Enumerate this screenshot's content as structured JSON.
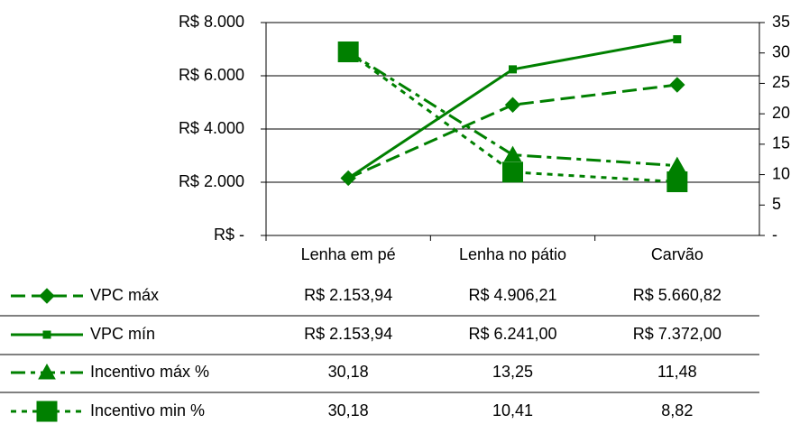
{
  "chart_data": {
    "type": "line",
    "categories": [
      "Lenha em pé",
      "Lenha no pátio",
      "Carvão"
    ],
    "ylim": [
      0,
      8000
    ],
    "yticks": [
      {
        "value": 0,
        "label": "R$ -"
      },
      {
        "value": 2000,
        "label": "R$ 2.000"
      },
      {
        "value": 4000,
        "label": "R$ 4.000"
      },
      {
        "value": 6000,
        "label": "R$ 6.000"
      },
      {
        "value": 8000,
        "label": "R$ 8.000"
      }
    ],
    "y2lim": [
      0,
      35
    ],
    "y2ticks": [
      {
        "value": 0,
        "label": "-"
      },
      5,
      10,
      15,
      20,
      25,
      30,
      35
    ],
    "grid": true,
    "data_table": true,
    "series": [
      {
        "name": "VPC máx",
        "color": "#008000",
        "dash": "long-dash",
        "marker": "diamond",
        "values": [
          2153.94,
          4906.21,
          5660.82
        ],
        "value_labels": [
          "R$ 2.153,94",
          "R$ 4.906,21",
          "R$ 5.660,82"
        ]
      },
      {
        "name": "VPC mín",
        "color": "#008000",
        "dash": "solid",
        "marker": "small-square",
        "values": [
          2153.94,
          6241.0,
          7372.0
        ],
        "value_labels": [
          "R$ 2.153,94",
          "R$ 6.241,00",
          "R$ 7.372,00"
        ]
      },
      {
        "name": "Incentivo máx %",
        "color": "#008000",
        "dash": "dash-dot",
        "marker": "triangle",
        "axis": "y2",
        "values": [
          30.18,
          13.25,
          11.48
        ],
        "value_labels": [
          "30,18",
          "13,25",
          "11,48"
        ]
      },
      {
        "name": "Incentivo min %",
        "color": "#008000",
        "dash": "short-dash",
        "marker": "square",
        "axis": "y2",
        "values": [
          30.18,
          10.41,
          8.82
        ],
        "value_labels": [
          "30,18",
          "10,41",
          "8,82"
        ]
      }
    ]
  }
}
